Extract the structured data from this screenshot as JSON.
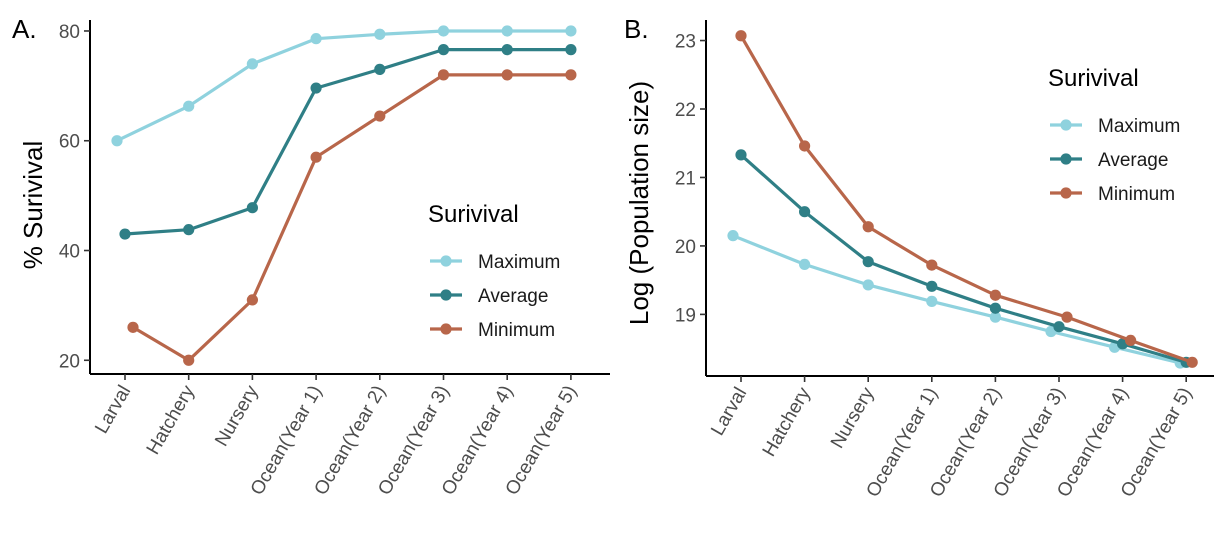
{
  "chart_data": [
    {
      "panel_label": "A.",
      "type": "line",
      "xlabel": "",
      "ylabel": "% Surivival",
      "categories": [
        "Larval",
        "Hatchery",
        "Nursery",
        "Ocean(Year 1)",
        "Ocean(Year 2)",
        "Ocean(Year 3)",
        "Ocean(Year 4)",
        "Ocean(Year 5)"
      ],
      "yticks": [
        20,
        40,
        60,
        80
      ],
      "ylim": [
        17.5,
        82
      ],
      "legend": {
        "title": "Surivival",
        "position": "right"
      },
      "series": [
        {
          "name": "Maximum",
          "color": "#8fd2de",
          "values": [
            60,
            66.3,
            74,
            78.6,
            79.4,
            80,
            80,
            80
          ]
        },
        {
          "name": "Average",
          "color": "#2f7f86",
          "values": [
            43,
            43.8,
            47.8,
            69.6,
            73,
            76.6,
            76.6,
            76.6
          ]
        },
        {
          "name": "Minimum",
          "color": "#b8664a",
          "values": [
            26,
            20,
            31,
            57,
            64.5,
            72,
            72,
            72
          ]
        }
      ]
    },
    {
      "panel_label": "B.",
      "type": "line",
      "xlabel": "",
      "ylabel": "Log (Population size)",
      "categories": [
        "Larval",
        "Hatchery",
        "Nursery",
        "Ocean(Year 1)",
        "Ocean(Year 2)",
        "Ocean(Year 3)",
        "Ocean(Year 4)",
        "Ocean(Year 5)"
      ],
      "yticks": [
        19,
        20,
        21,
        22,
        23
      ],
      "ylim": [
        18.1,
        23.3
      ],
      "legend": {
        "title": "Surivival",
        "position": "top-right"
      },
      "series": [
        {
          "name": "Maximum",
          "color": "#8fd2de",
          "values": [
            20.15,
            19.73,
            19.43,
            19.19,
            18.96,
            18.75,
            18.52,
            18.29
          ]
        },
        {
          "name": "Average",
          "color": "#2f7f86",
          "values": [
            21.33,
            20.5,
            19.77,
            19.41,
            19.09,
            18.82,
            18.57,
            18.3
          ]
        },
        {
          "name": "Minimum",
          "color": "#b8664a",
          "values": [
            23.07,
            21.46,
            20.28,
            19.72,
            19.28,
            18.96,
            18.62,
            18.3
          ]
        }
      ]
    }
  ]
}
